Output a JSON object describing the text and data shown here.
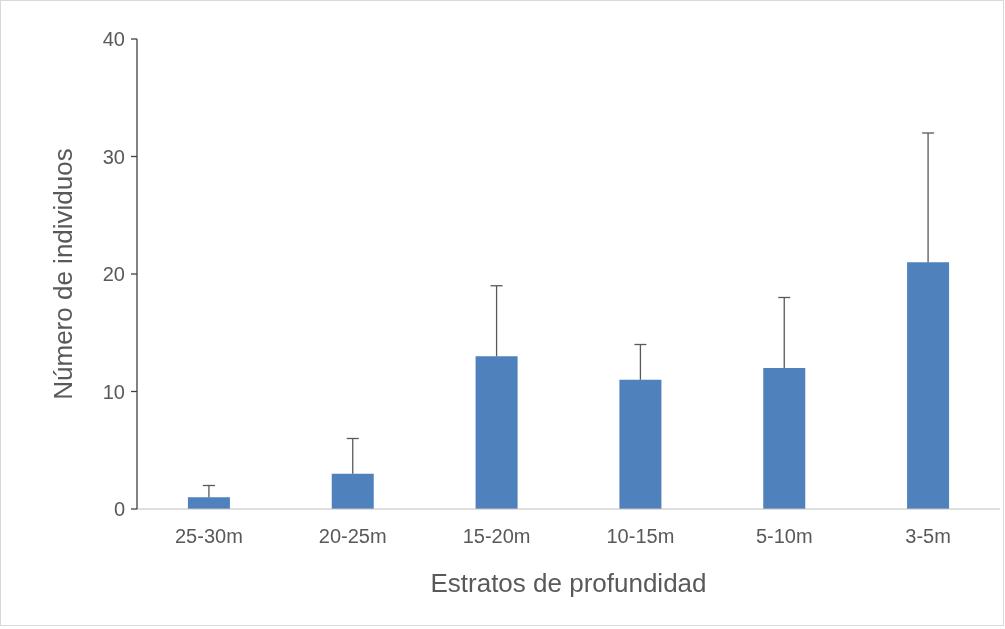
{
  "chart_data": {
    "type": "bar",
    "xlabel": "Estratos de profundidad",
    "ylabel": "Número de individuos",
    "categories": [
      "25-30m",
      "20-25m",
      "15-20m",
      "10-15m",
      "5-10m",
      "3-5m"
    ],
    "values": [
      1,
      3,
      13,
      11,
      12,
      21
    ],
    "errors": [
      [
        1,
        2
      ],
      [
        3,
        6
      ],
      [
        13,
        19
      ],
      [
        11,
        14
      ],
      [
        12,
        18
      ],
      [
        21,
        32
      ]
    ],
    "color": "#4f81bd",
    "ylim": [
      0,
      40
    ],
    "yticks": [
      0,
      10,
      20,
      30,
      40
    ]
  }
}
